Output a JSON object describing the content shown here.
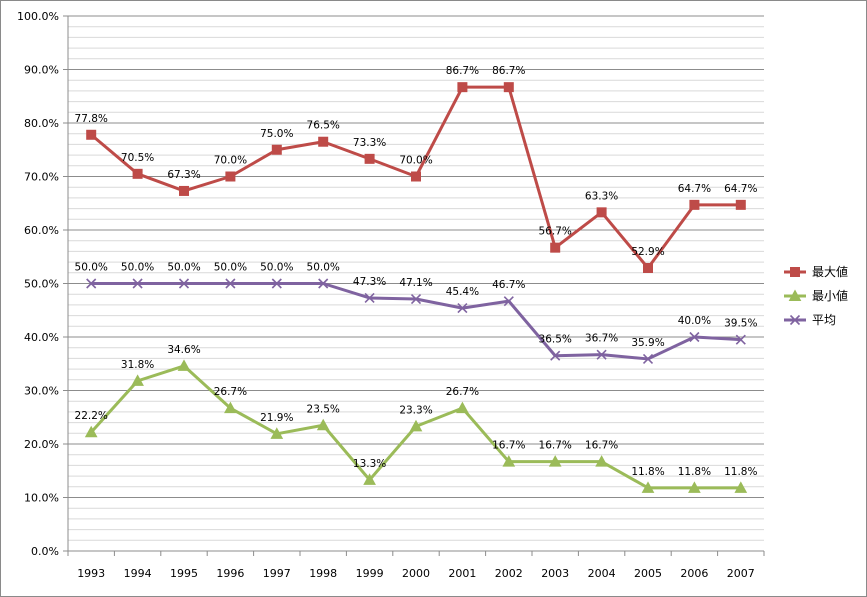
{
  "chart_data": {
    "type": "line",
    "title": "",
    "xlabel": "",
    "ylabel": "",
    "categories": [
      "1993",
      "1994",
      "1995",
      "1996",
      "1997",
      "1998",
      "1999",
      "2000",
      "2001",
      "2002",
      "2003",
      "2004",
      "2005",
      "2006",
      "2007"
    ],
    "ylim": [
      0,
      100
    ],
    "yticks": [
      0,
      10,
      20,
      30,
      40,
      50,
      60,
      70,
      80,
      90,
      100
    ],
    "ytick_labels": [
      "0.0%",
      "10.0%",
      "20.0%",
      "30.0%",
      "40.0%",
      "50.0%",
      "60.0%",
      "70.0%",
      "80.0%",
      "90.0%",
      "100.0%"
    ],
    "grid": "horizontal",
    "legend_position": "right",
    "series": [
      {
        "name": "最大値",
        "color": "#be4b48",
        "marker": "square",
        "values": [
          77.8,
          70.5,
          67.3,
          70.0,
          75.0,
          76.5,
          73.3,
          70.0,
          86.7,
          86.7,
          56.7,
          63.3,
          52.9,
          64.7,
          64.7
        ],
        "labels": [
          "77.8%",
          "70.5%",
          "67.3%",
          "70.0%",
          "75.0%",
          "76.5%",
          "73.3%",
          "70.0%",
          "86.7%",
          "86.7%",
          "56.7%",
          "63.3%",
          "52.9%",
          "64.7%",
          "64.7%"
        ]
      },
      {
        "name": "最小値",
        "color": "#9bbb59",
        "marker": "triangle",
        "values": [
          22.2,
          31.8,
          34.6,
          26.7,
          21.9,
          23.5,
          13.3,
          23.3,
          26.7,
          16.7,
          16.7,
          16.7,
          11.8,
          11.8,
          11.8
        ],
        "labels": [
          "22.2%",
          "31.8%",
          "34.6%",
          "26.7%",
          "21.9%",
          "23.5%",
          "13.3%",
          "23.3%",
          "26.7%",
          "16.7%",
          "16.7%",
          "16.7%",
          "11.8%",
          "11.8%",
          "11.8%"
        ]
      },
      {
        "name": "平均",
        "color": "#7f63a0",
        "marker": "x",
        "values": [
          50.0,
          50.0,
          50.0,
          50.0,
          50.0,
          50.0,
          47.3,
          47.1,
          45.4,
          46.7,
          36.5,
          36.7,
          35.9,
          40.0,
          39.5
        ],
        "labels": [
          "50.0%",
          "50.0%",
          "50.0%",
          "50.0%",
          "50.0%",
          "50.0%",
          "47.3%",
          "47.1%",
          "45.4%",
          "46.7%",
          "36.5%",
          "36.7%",
          "35.9%",
          "40.0%",
          "39.5%"
        ]
      }
    ]
  }
}
